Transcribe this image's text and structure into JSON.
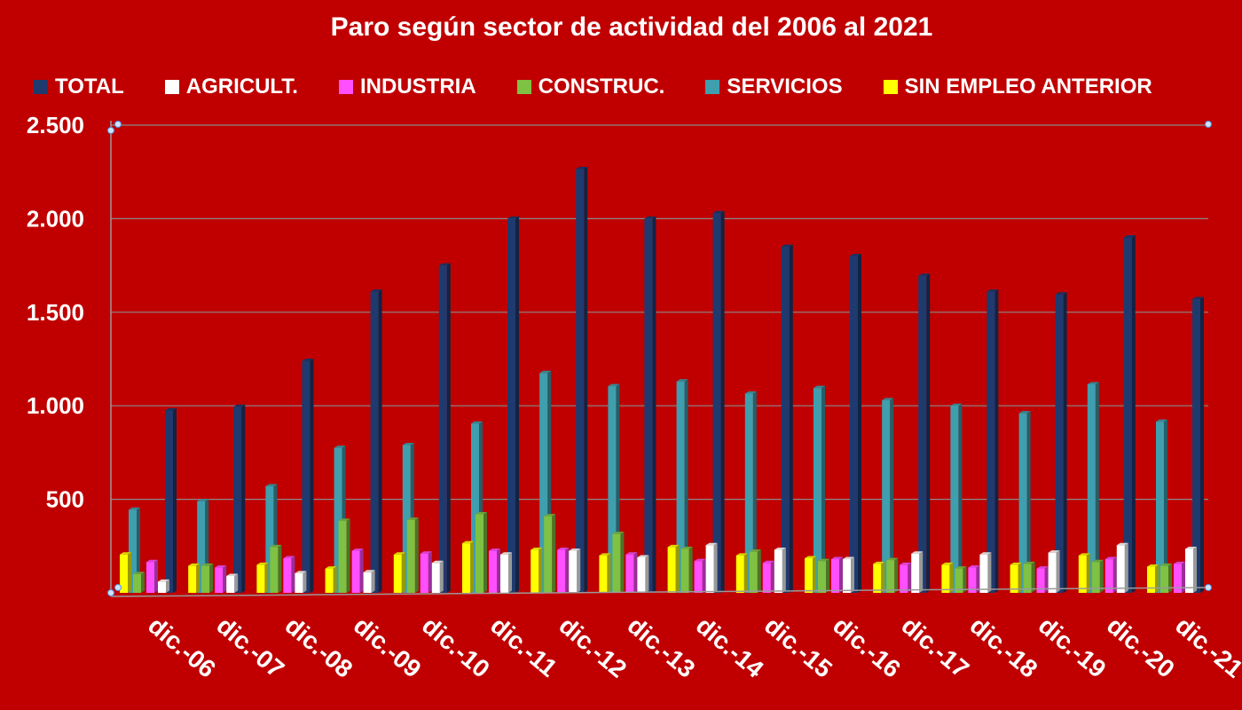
{
  "chart_data": {
    "type": "bar",
    "title": "Paro según sector de actividad del 2006 al 2021",
    "categories": [
      "dic.-06",
      "dic.-07",
      "dic.-08",
      "dic.-09",
      "dic.-10",
      "dic.-11",
      "dic.-12",
      "dic.-13",
      "dic.-14",
      "dic.-15",
      "dic.-16",
      "dic.-17",
      "dic.-18",
      "dic.-19",
      "dic.-20",
      "dic.-21"
    ],
    "yticks": [
      "500",
      "1.000",
      "1.500",
      "2.000",
      "2.500"
    ],
    "ylim": [
      0,
      2500
    ],
    "grid": true,
    "legend_position": "top",
    "series": [
      {
        "name": "SIN EMPLEO ANTERIOR",
        "color": "#ffff00",
        "values": [
          205,
          145,
          150,
          130,
          205,
          265,
          230,
          200,
          245,
          200,
          185,
          155,
          150,
          150,
          200,
          140
        ]
      },
      {
        "name": "AGRICULT.",
        "color": "#ffffff",
        "values": [
          60,
          90,
          105,
          110,
          160,
          205,
          225,
          190,
          255,
          230,
          180,
          210,
          205,
          215,
          255,
          235
        ]
      },
      {
        "name": "INDUSTRIA",
        "color": "#ff4fff",
        "values": [
          165,
          135,
          185,
          225,
          210,
          225,
          230,
          205,
          170,
          160,
          180,
          150,
          135,
          130,
          180,
          155
        ]
      },
      {
        "name": "CONSTRUC.",
        "color": "#7ec143",
        "values": [
          100,
          145,
          245,
          385,
          390,
          420,
          410,
          315,
          235,
          220,
          170,
          175,
          130,
          155,
          165,
          145
        ]
      },
      {
        "name": "SERVICIOS",
        "color": "#3f9fae",
        "values": [
          445,
          490,
          570,
          775,
          790,
          905,
          1175,
          1105,
          1130,
          1065,
          1095,
          1030,
          1000,
          960,
          1115,
          915
        ]
      },
      {
        "name": "TOTAL",
        "color": "#1f3a6e",
        "values": [
          975,
          995,
          1240,
          1610,
          1750,
          2000,
          2265,
          2000,
          2030,
          1850,
          1800,
          1695,
          1610,
          1595,
          1900,
          1570
        ]
      }
    ]
  }
}
